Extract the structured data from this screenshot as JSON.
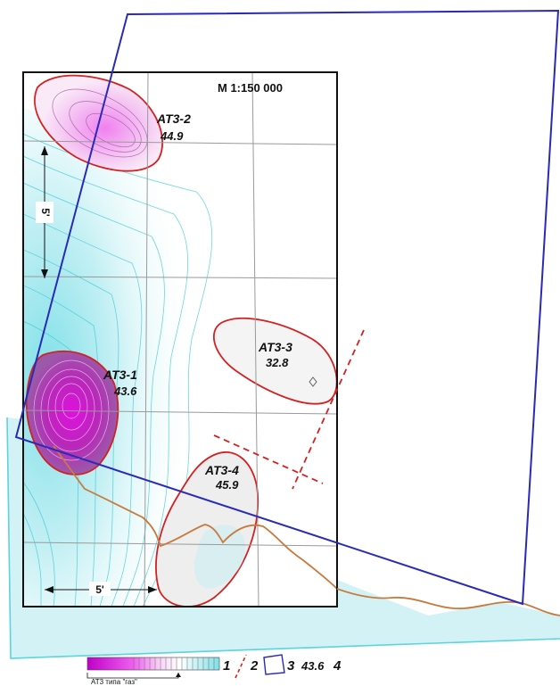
{
  "map": {
    "scale_label": "M 1:150 000",
    "dimension_vertical": "5'",
    "dimension_horizontal": "5'",
    "anomalies": [
      {
        "id": "AT3-1",
        "name": "AT3-1",
        "value": "43.6"
      },
      {
        "id": "AT3-2",
        "name": "AT3-2",
        "value": "44.9"
      },
      {
        "id": "AT3-3",
        "name": "AT3-3",
        "value": "32.8"
      },
      {
        "id": "AT3-4",
        "name": "AT3-4",
        "value": "45.9"
      }
    ]
  },
  "legend": {
    "scale_caption": "AT3 типа \"газ\"",
    "item1_number": "1",
    "item2_number": "2",
    "item3_number": "3",
    "item4_sample_value": "43.6",
    "item4_number": "4"
  },
  "colors": {
    "map_frame": "#111111",
    "license_boundary": "#2a2ab8",
    "anomaly_outline": "#d42020",
    "coastline": "#c87a3c",
    "sea_fill": "#d2f2f6",
    "sea_edge": "#5ad4de",
    "anomaly_core": "#c020c8",
    "anomaly_light": "#f2c8f0"
  }
}
